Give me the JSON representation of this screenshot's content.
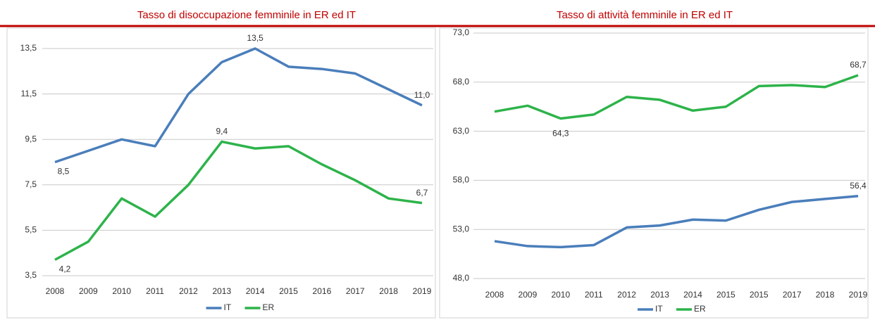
{
  "chart_data": [
    {
      "type": "line",
      "title": "Tasso di disoccupazione femminile in ER ed IT",
      "categories": [
        "2008",
        "2009",
        "2010",
        "2011",
        "2012",
        "2013",
        "2014",
        "2015",
        "2016",
        "2017",
        "2018",
        "2019"
      ],
      "ylim": [
        3.5,
        13.5
      ],
      "yticks": [
        {
          "value": 3.5,
          "label": "3,5"
        },
        {
          "value": 5.5,
          "label": "5,5"
        },
        {
          "value": 7.5,
          "label": "7,5"
        },
        {
          "value": 9.5,
          "label": "9,5"
        },
        {
          "value": 11.5,
          "label": "11,5"
        },
        {
          "value": 13.5,
          "label": "13,5"
        }
      ],
      "grid": true,
      "legend": "bottom",
      "series": [
        {
          "name": "IT",
          "color": "#4a7ebb",
          "values": [
            8.5,
            9.0,
            9.5,
            9.2,
            11.5,
            12.9,
            13.5,
            12.7,
            12.6,
            12.4,
            11.7,
            11.0
          ],
          "value_labels": [
            "8,5",
            null,
            null,
            null,
            null,
            null,
            "13,5",
            null,
            null,
            null,
            null,
            "11,0"
          ]
        },
        {
          "name": "ER",
          "color": "#2db34a",
          "values": [
            4.2,
            5.0,
            6.9,
            6.1,
            7.5,
            9.4,
            9.1,
            9.2,
            8.4,
            7.7,
            6.9,
            6.7
          ],
          "value_labels": [
            "4,2",
            null,
            null,
            null,
            null,
            "9,4",
            null,
            null,
            null,
            null,
            null,
            "6,7"
          ]
        }
      ]
    },
    {
      "type": "line",
      "title": "Tasso di attività femminile in ER ed IT",
      "categories": [
        "2008",
        "2009",
        "2010",
        "2011",
        "2012",
        "2013",
        "2014",
        "2015",
        "2015",
        "2017",
        "2018",
        "2019"
      ],
      "ylim": [
        48.0,
        73.0
      ],
      "yticks": [
        {
          "value": 48.0,
          "label": "48,0"
        },
        {
          "value": 53.0,
          "label": "53,0"
        },
        {
          "value": 58.0,
          "label": "58,0"
        },
        {
          "value": 63.0,
          "label": "63,0"
        },
        {
          "value": 68.0,
          "label": "68,0"
        },
        {
          "value": 73.0,
          "label": "73,0"
        }
      ],
      "grid": true,
      "legend": "bottom",
      "series": [
        {
          "name": "IT",
          "color": "#4a7ebb",
          "values": [
            51.8,
            51.3,
            51.2,
            51.4,
            53.2,
            53.4,
            54.0,
            53.9,
            55.0,
            55.8,
            56.1,
            56.4
          ],
          "value_labels": [
            null,
            null,
            null,
            null,
            null,
            null,
            null,
            null,
            null,
            null,
            null,
            "56,4"
          ]
        },
        {
          "name": "ER",
          "color": "#2db34a",
          "values": [
            65.0,
            65.6,
            64.3,
            64.7,
            66.5,
            66.2,
            65.1,
            65.5,
            67.6,
            67.7,
            67.5,
            68.7
          ],
          "value_labels": [
            null,
            null,
            "64,3",
            null,
            null,
            null,
            null,
            null,
            null,
            null,
            null,
            "68,7"
          ]
        }
      ]
    }
  ]
}
